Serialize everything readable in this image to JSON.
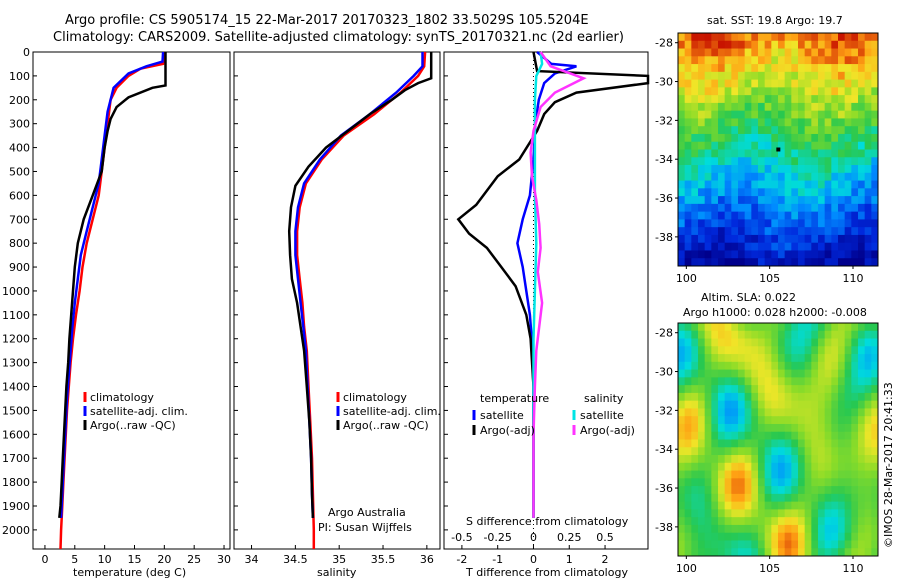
{
  "figure": {
    "title_line1": "Argo profile: CS 5905174_15 22-Mar-2017 20170323_1802 33.5029S 105.5204E",
    "title_line2": "Climatology: CARS2009. Satellite-adjusted climatology: synTS_20170321.nc (2d earlier)",
    "credit": "©IMOS 28-Mar-2017 20:41:33",
    "colors": {
      "climatology": "#ff0000",
      "satellite": "#0000ff",
      "argo": "#000000",
      "sal_satellite": "#00e5e5",
      "sal_argo": "#ff33ff"
    }
  },
  "chart_data": [
    {
      "type": "line",
      "panel": "temperature",
      "xlabel": "temperature (deg C)",
      "ylabel": "",
      "xlim": [
        -2,
        31
      ],
      "ylim": [
        2080,
        0
      ],
      "xticks": [
        0,
        5,
        10,
        15,
        20,
        25,
        30
      ],
      "yticks": [
        0,
        100,
        200,
        300,
        400,
        500,
        600,
        700,
        800,
        900,
        1000,
        1100,
        1200,
        1300,
        1400,
        1500,
        1600,
        1700,
        1800,
        1900,
        2000
      ],
      "legend": [
        "climatology",
        "satellite-adj. clim.",
        "Argo(..raw -QC)"
      ],
      "series": [
        {
          "name": "climatology",
          "points": [
            [
              20,
              0
            ],
            [
              19.8,
              50
            ],
            [
              16,
              70
            ],
            [
              14,
              100
            ],
            [
              12,
              150
            ],
            [
              11,
              200
            ],
            [
              10.5,
              300
            ],
            [
              10,
              400
            ],
            [
              9.5,
              500
            ],
            [
              9,
              600
            ],
            [
              8,
              700
            ],
            [
              7,
              800
            ],
            [
              6.3,
              900
            ],
            [
              5.8,
              1000
            ],
            [
              5.2,
              1100
            ],
            [
              4.7,
              1200
            ],
            [
              4.3,
              1300
            ],
            [
              4,
              1400
            ],
            [
              3.7,
              1500
            ],
            [
              3.5,
              1600
            ],
            [
              3.3,
              1700
            ],
            [
              3.1,
              1800
            ],
            [
              2.9,
              1900
            ],
            [
              2.7,
              2000
            ],
            [
              2.6,
              2080
            ]
          ]
        },
        {
          "name": "satellite-adj. clim.",
          "points": [
            [
              19.8,
              0
            ],
            [
              19.7,
              40
            ],
            [
              17,
              60
            ],
            [
              14,
              90
            ],
            [
              11.5,
              150
            ],
            [
              10.5,
              250
            ],
            [
              10,
              350
            ],
            [
              9.5,
              450
            ],
            [
              9,
              550
            ],
            [
              8,
              650
            ],
            [
              7,
              750
            ],
            [
              6,
              850
            ],
            [
              5.5,
              950
            ],
            [
              5,
              1050
            ],
            [
              4.6,
              1150
            ],
            [
              4.3,
              1250
            ],
            [
              4,
              1350
            ],
            [
              3.7,
              1450
            ],
            [
              3.5,
              1550
            ],
            [
              3.3,
              1650
            ],
            [
              3.1,
              1750
            ],
            [
              2.9,
              1850
            ],
            [
              2.7,
              1950
            ]
          ]
        },
        {
          "name": "Argo(..raw -QC)",
          "points": [
            [
              20.2,
              0
            ],
            [
              20.2,
              140
            ],
            [
              18,
              150
            ],
            [
              14,
              190
            ],
            [
              12,
              230
            ],
            [
              11,
              280
            ],
            [
              10.5,
              330
            ],
            [
              10,
              400
            ],
            [
              9.5,
              500
            ],
            [
              8,
              600
            ],
            [
              6.5,
              700
            ],
            [
              5.5,
              800
            ],
            [
              5,
              900
            ],
            [
              4.7,
              1000
            ],
            [
              4.4,
              1100
            ],
            [
              4.1,
              1200
            ],
            [
              3.9,
              1300
            ],
            [
              3.6,
              1400
            ],
            [
              3.4,
              1500
            ],
            [
              3.2,
              1600
            ],
            [
              3,
              1700
            ],
            [
              2.8,
              1800
            ],
            [
              2.6,
              1900
            ],
            [
              2.4,
              1950
            ]
          ]
        }
      ]
    },
    {
      "type": "line",
      "panel": "salinity",
      "xlabel": "salinity",
      "ylabel": "",
      "xlim": [
        33.8,
        36.15
      ],
      "ylim": [
        2080,
        0
      ],
      "xticks": [
        34,
        34.5,
        35,
        35.5,
        36
      ],
      "xtick_labels": [
        "34",
        "34.5",
        "35",
        "35.5",
        "36"
      ],
      "legend": [
        "climatology",
        "satellite-adj. clim.",
        "Argo(..raw -QC)"
      ],
      "annotation": [
        "Argo Australia",
        "PI: Susan Wijffels"
      ],
      "series": [
        {
          "name": "climatology",
          "points": [
            [
              35.98,
              0
            ],
            [
              35.97,
              60
            ],
            [
              35.9,
              100
            ],
            [
              35.7,
              170
            ],
            [
              35.4,
              260
            ],
            [
              35.05,
              350
            ],
            [
              34.8,
              450
            ],
            [
              34.62,
              550
            ],
            [
              34.55,
              650
            ],
            [
              34.52,
              750
            ],
            [
              34.52,
              850
            ],
            [
              34.55,
              950
            ],
            [
              34.58,
              1050
            ],
            [
              34.6,
              1150
            ],
            [
              34.63,
              1250
            ],
            [
              34.65,
              1400
            ],
            [
              34.67,
              1550
            ],
            [
              34.69,
              1700
            ],
            [
              34.7,
              1850
            ],
            [
              34.71,
              2000
            ],
            [
              34.71,
              2080
            ]
          ]
        },
        {
          "name": "satellite-adj. clim.",
          "points": [
            [
              35.95,
              0
            ],
            [
              35.95,
              60
            ],
            [
              35.85,
              100
            ],
            [
              35.65,
              170
            ],
            [
              35.35,
              260
            ],
            [
              35.02,
              350
            ],
            [
              34.78,
              450
            ],
            [
              34.6,
              550
            ],
            [
              34.53,
              650
            ],
            [
              34.5,
              750
            ],
            [
              34.5,
              850
            ],
            [
              34.53,
              950
            ],
            [
              34.56,
              1050
            ],
            [
              34.59,
              1150
            ],
            [
              34.62,
              1250
            ],
            [
              34.64,
              1400
            ],
            [
              34.66,
              1550
            ],
            [
              34.68,
              1700
            ],
            [
              34.69,
              1850
            ],
            [
              34.7,
              1950
            ]
          ]
        },
        {
          "name": "Argo(..raw -QC)",
          "points": [
            [
              36.05,
              0
            ],
            [
              36.05,
              110
            ],
            [
              35.9,
              130
            ],
            [
              35.75,
              160
            ],
            [
              35.6,
              200
            ],
            [
              35.35,
              260
            ],
            [
              35.1,
              330
            ],
            [
              34.85,
              400
            ],
            [
              34.65,
              480
            ],
            [
              34.5,
              560
            ],
            [
              34.45,
              650
            ],
            [
              34.43,
              750
            ],
            [
              34.44,
              850
            ],
            [
              34.46,
              950
            ],
            [
              34.52,
              1050
            ],
            [
              34.56,
              1150
            ],
            [
              34.6,
              1250
            ],
            [
              34.63,
              1400
            ],
            [
              34.66,
              1550
            ],
            [
              34.68,
              1700
            ],
            [
              34.69,
              1850
            ],
            [
              34.7,
              1950
            ]
          ]
        }
      ]
    },
    {
      "type": "line",
      "panel": "difference",
      "xlabel": "T difference from climatology",
      "xlabel_top": "S difference from climatology",
      "ylabel": "",
      "xlim": [
        -2.5,
        3.2
      ],
      "ylim": [
        2080,
        0
      ],
      "xticks": [
        -2,
        -1,
        0,
        1,
        2
      ],
      "s_ticks": [
        -0.5,
        -0.25,
        0,
        0.25,
        0.5
      ],
      "legend_left_title": "temperature",
      "legend_right_title": "salinity",
      "legend": [
        "satellite",
        "Argo(-adj)",
        "satellite",
        "Argo(-adj)"
      ],
      "series": [
        {
          "name": "temperature satellite",
          "points": [
            [
              0.1,
              0
            ],
            [
              0.5,
              50
            ],
            [
              1.2,
              60
            ],
            [
              0.6,
              90
            ],
            [
              0.3,
              130
            ],
            [
              0.15,
              200
            ],
            [
              0.05,
              300
            ],
            [
              0,
              450
            ],
            [
              -0.1,
              600
            ],
            [
              -0.3,
              700
            ],
            [
              -0.45,
              800
            ],
            [
              -0.3,
              900
            ],
            [
              -0.2,
              1000
            ],
            [
              -0.1,
              1100
            ],
            [
              -0.05,
              1200
            ],
            [
              0,
              1400
            ],
            [
              0,
              1700
            ],
            [
              0,
              1950
            ]
          ]
        },
        {
          "name": "temperature Argo(-adj)",
          "points": [
            [
              0,
              0
            ],
            [
              0.1,
              80
            ],
            [
              3.2,
              100
            ],
            [
              3.2,
              130
            ],
            [
              1.2,
              170
            ],
            [
              0.6,
              210
            ],
            [
              0.3,
              260
            ],
            [
              0.1,
              330
            ],
            [
              -0.4,
              450
            ],
            [
              -1,
              520
            ],
            [
              -1.6,
              640
            ],
            [
              -2.1,
              700
            ],
            [
              -1.8,
              760
            ],
            [
              -1.3,
              820
            ],
            [
              -0.9,
              900
            ],
            [
              -0.5,
              980
            ],
            [
              -0.2,
              1100
            ],
            [
              -0.08,
              1200
            ],
            [
              0,
              1400
            ],
            [
              0,
              1700
            ],
            [
              0,
              1950
            ]
          ]
        },
        {
          "name": "salinity satellite",
          "points": [
            [
              0.05,
              0
            ],
            [
              0.06,
              50
            ],
            [
              0.02,
              100
            ],
            [
              0.01,
              200
            ],
            [
              0.01,
              400
            ],
            [
              0.01,
              600
            ],
            [
              0.02,
              800
            ],
            [
              0.01,
              1000
            ],
            [
              0,
              1200
            ],
            [
              0,
              1500
            ],
            [
              0,
              1950
            ]
          ]
        },
        {
          "name": "salinity Argo(-adj)",
          "points": [
            [
              0.05,
              0
            ],
            [
              0.12,
              60
            ],
            [
              0.35,
              110
            ],
            [
              0.15,
              170
            ],
            [
              0.05,
              230
            ],
            [
              0,
              330
            ],
            [
              -0.02,
              420
            ],
            [
              -0.01,
              520
            ],
            [
              0.02,
              620
            ],
            [
              0.04,
              720
            ],
            [
              0.05,
              820
            ],
            [
              0.03,
              920
            ],
            [
              0.06,
              1050
            ],
            [
              0.04,
              1150
            ],
            [
              0.02,
              1250
            ],
            [
              0.01,
              1400
            ],
            [
              0,
              1600
            ],
            [
              0,
              1950
            ]
          ]
        }
      ]
    },
    {
      "type": "heatmap",
      "panel": "sst",
      "title": "sat. SST: 19.8  Argo: 19.7",
      "xlim": [
        99.5,
        111.5
      ],
      "ylim": [
        -39.5,
        -27.5
      ],
      "xticks": [
        100,
        105,
        110
      ],
      "yticks": [
        -28,
        -30,
        -32,
        -34,
        -36,
        -38
      ],
      "marker_lon": 105.52,
      "marker_lat": -33.5
    },
    {
      "type": "heatmap",
      "panel": "sla",
      "title": "Altim. SLA: 0.022",
      "subtitle": "Argo h1000: 0.028 h2000: -0.008",
      "xlim": [
        99.5,
        111.5
      ],
      "ylim": [
        -39.5,
        -27.5
      ],
      "xticks": [
        100,
        105,
        110
      ],
      "yticks": [
        -28,
        -30,
        -32,
        -34,
        -36,
        -38
      ]
    }
  ]
}
